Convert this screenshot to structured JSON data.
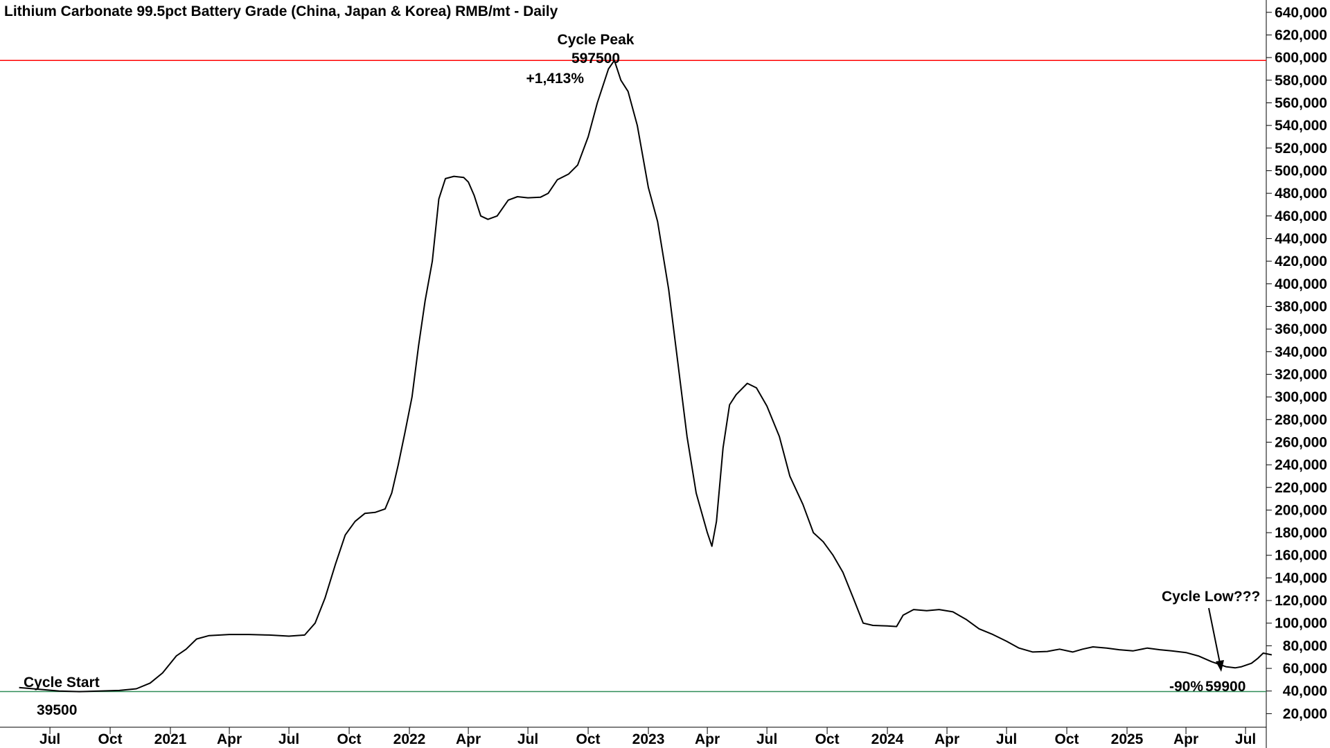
{
  "chart_data": {
    "type": "line",
    "title": "Lithium Carbonate 99.5pct Battery Grade (China, Japan & Korea) RMB/mt - Daily",
    "ylim": [
      8000,
      646000
    ],
    "y_ticks": [
      "20,000",
      "40,000",
      "60,000",
      "80,000",
      "100,000",
      "120,000",
      "140,000",
      "160,000",
      "180,000",
      "200,000",
      "220,000",
      "240,000",
      "260,000",
      "280,000",
      "300,000",
      "320,000",
      "340,000",
      "360,000",
      "380,000",
      "400,000",
      "420,000",
      "440,000",
      "460,000",
      "480,000",
      "500,000",
      "520,000",
      "540,000",
      "560,000",
      "580,000",
      "600,000",
      "620,000",
      "640,000"
    ],
    "x_ticks": [
      {
        "label": "Jul",
        "date": "2020-07-01"
      },
      {
        "label": "Oct",
        "date": "2020-10-01"
      },
      {
        "label": "2021",
        "date": "2021-01-01"
      },
      {
        "label": "Apr",
        "date": "2021-04-01"
      },
      {
        "label": "Jul",
        "date": "2021-07-01"
      },
      {
        "label": "Oct",
        "date": "2021-10-01"
      },
      {
        "label": "2022",
        "date": "2022-01-01"
      },
      {
        "label": "Apr",
        "date": "2022-04-01"
      },
      {
        "label": "Jul",
        "date": "2022-07-01"
      },
      {
        "label": "Oct",
        "date": "2022-10-01"
      },
      {
        "label": "2023",
        "date": "2023-01-01"
      },
      {
        "label": "Apr",
        "date": "2023-04-01"
      },
      {
        "label": "Jul",
        "date": "2023-07-01"
      },
      {
        "label": "Oct",
        "date": "2023-10-01"
      },
      {
        "label": "2024",
        "date": "2024-01-01"
      },
      {
        "label": "Apr",
        "date": "2024-04-01"
      },
      {
        "label": "Jul",
        "date": "2024-07-01"
      },
      {
        "label": "Oct",
        "date": "2024-10-01"
      },
      {
        "label": "2025",
        "date": "2025-01-01"
      },
      {
        "label": "Apr",
        "date": "2025-04-01"
      },
      {
        "label": "Jul",
        "date": "2025-07-01"
      }
    ],
    "series": [
      {
        "color": "#000000",
        "points": [
          [
            "2020-05-15",
            43000
          ],
          [
            "2020-06-15",
            41500
          ],
          [
            "2020-07-15",
            40000
          ],
          [
            "2020-08-15",
            39500
          ],
          [
            "2020-09-15",
            40000
          ],
          [
            "2020-10-15",
            40500
          ],
          [
            "2020-11-10",
            42000
          ],
          [
            "2020-12-01",
            47000
          ],
          [
            "2020-12-20",
            56000
          ],
          [
            "2021-01-10",
            71000
          ],
          [
            "2021-01-25",
            77000
          ],
          [
            "2021-02-10",
            86000
          ],
          [
            "2021-03-01",
            89000
          ],
          [
            "2021-04-01",
            90000
          ],
          [
            "2021-05-01",
            90000
          ],
          [
            "2021-06-01",
            89500
          ],
          [
            "2021-07-01",
            88500
          ],
          [
            "2021-07-25",
            89500
          ],
          [
            "2021-08-10",
            100000
          ],
          [
            "2021-08-25",
            122000
          ],
          [
            "2021-09-10",
            152000
          ],
          [
            "2021-09-25",
            178000
          ],
          [
            "2021-10-10",
            190000
          ],
          [
            "2021-10-25",
            197000
          ],
          [
            "2021-11-10",
            198000
          ],
          [
            "2021-11-25",
            201000
          ],
          [
            "2021-12-05",
            215000
          ],
          [
            "2021-12-15",
            240000
          ],
          [
            "2021-12-25",
            268000
          ],
          [
            "2022-01-05",
            300000
          ],
          [
            "2022-01-15",
            345000
          ],
          [
            "2022-01-25",
            385000
          ],
          [
            "2022-02-05",
            420000
          ],
          [
            "2022-02-15",
            475000
          ],
          [
            "2022-02-25",
            493000
          ],
          [
            "2022-03-10",
            495000
          ],
          [
            "2022-03-25",
            494000
          ],
          [
            "2022-04-01",
            490000
          ],
          [
            "2022-04-10",
            478000
          ],
          [
            "2022-04-20",
            460000
          ],
          [
            "2022-05-01",
            457000
          ],
          [
            "2022-05-15",
            460000
          ],
          [
            "2022-06-01",
            474000
          ],
          [
            "2022-06-15",
            477000
          ],
          [
            "2022-07-01",
            476000
          ],
          [
            "2022-07-20",
            476500
          ],
          [
            "2022-08-01",
            480000
          ],
          [
            "2022-08-15",
            492000
          ],
          [
            "2022-09-01",
            497000
          ],
          [
            "2022-09-15",
            505000
          ],
          [
            "2022-10-01",
            530000
          ],
          [
            "2022-10-15",
            560000
          ],
          [
            "2022-11-01",
            590000
          ],
          [
            "2022-11-10",
            597500
          ],
          [
            "2022-11-20",
            580000
          ],
          [
            "2022-12-01",
            570000
          ],
          [
            "2022-12-15",
            540000
          ],
          [
            "2023-01-01",
            485000
          ],
          [
            "2023-01-15",
            455000
          ],
          [
            "2023-02-01",
            395000
          ],
          [
            "2023-02-15",
            330000
          ],
          [
            "2023-03-01",
            265000
          ],
          [
            "2023-03-15",
            215000
          ],
          [
            "2023-04-01",
            180000
          ],
          [
            "2023-04-08",
            168000
          ],
          [
            "2023-04-15",
            190000
          ],
          [
            "2023-04-25",
            255000
          ],
          [
            "2023-05-05",
            293000
          ],
          [
            "2023-05-15",
            302000
          ],
          [
            "2023-06-01",
            312000
          ],
          [
            "2023-06-15",
            308000
          ],
          [
            "2023-07-01",
            292000
          ],
          [
            "2023-07-20",
            265000
          ],
          [
            "2023-08-05",
            230000
          ],
          [
            "2023-08-25",
            205000
          ],
          [
            "2023-09-10",
            180000
          ],
          [
            "2023-09-25",
            172000
          ],
          [
            "2023-10-10",
            160000
          ],
          [
            "2023-10-25",
            145000
          ],
          [
            "2023-11-10",
            122000
          ],
          [
            "2023-11-25",
            100000
          ],
          [
            "2023-12-10",
            98000
          ],
          [
            "2024-01-01",
            97500
          ],
          [
            "2024-01-15",
            97000
          ],
          [
            "2024-01-25",
            107000
          ],
          [
            "2024-02-10",
            112000
          ],
          [
            "2024-03-01",
            111000
          ],
          [
            "2024-03-20",
            112000
          ],
          [
            "2024-04-10",
            110000
          ],
          [
            "2024-05-01",
            103000
          ],
          [
            "2024-05-20",
            95000
          ],
          [
            "2024-06-10",
            90000
          ],
          [
            "2024-07-01",
            84000
          ],
          [
            "2024-07-20",
            78000
          ],
          [
            "2024-08-10",
            74500
          ],
          [
            "2024-09-01",
            75000
          ],
          [
            "2024-09-20",
            77000
          ],
          [
            "2024-10-10",
            74500
          ],
          [
            "2024-10-25",
            77000
          ],
          [
            "2024-11-10",
            79000
          ],
          [
            "2024-12-01",
            78000
          ],
          [
            "2024-12-20",
            76500
          ],
          [
            "2025-01-10",
            75500
          ],
          [
            "2025-02-01",
            78000
          ],
          [
            "2025-02-20",
            76500
          ],
          [
            "2025-03-10",
            75500
          ],
          [
            "2025-04-01",
            74000
          ],
          [
            "2025-04-20",
            71000
          ],
          [
            "2025-05-10",
            66000
          ],
          [
            "2025-06-01",
            61500
          ],
          [
            "2025-06-15",
            60500
          ],
          [
            "2025-06-25",
            61500
          ],
          [
            "2025-07-10",
            64500
          ],
          [
            "2025-07-20",
            69000
          ],
          [
            "2025-07-28",
            73500
          ],
          [
            "2025-08-10",
            72000
          ]
        ]
      }
    ],
    "reference_lines": [
      {
        "value": 597500,
        "color": "#ff0000"
      },
      {
        "value": 39500,
        "color": "#2e8b57"
      }
    ],
    "annotations": {
      "cycle_peak": "Cycle Peak",
      "peak_value": "597500",
      "peak_change": "+1,413%",
      "cycle_start": "Cycle Start",
      "start_value": "39500",
      "cycle_low": "Cycle Low???",
      "low_change": "-90%",
      "low_value": "59900"
    },
    "colors": {
      "gain": "#1a9a1a",
      "loss": "#ff0000",
      "line": "#000000"
    }
  }
}
